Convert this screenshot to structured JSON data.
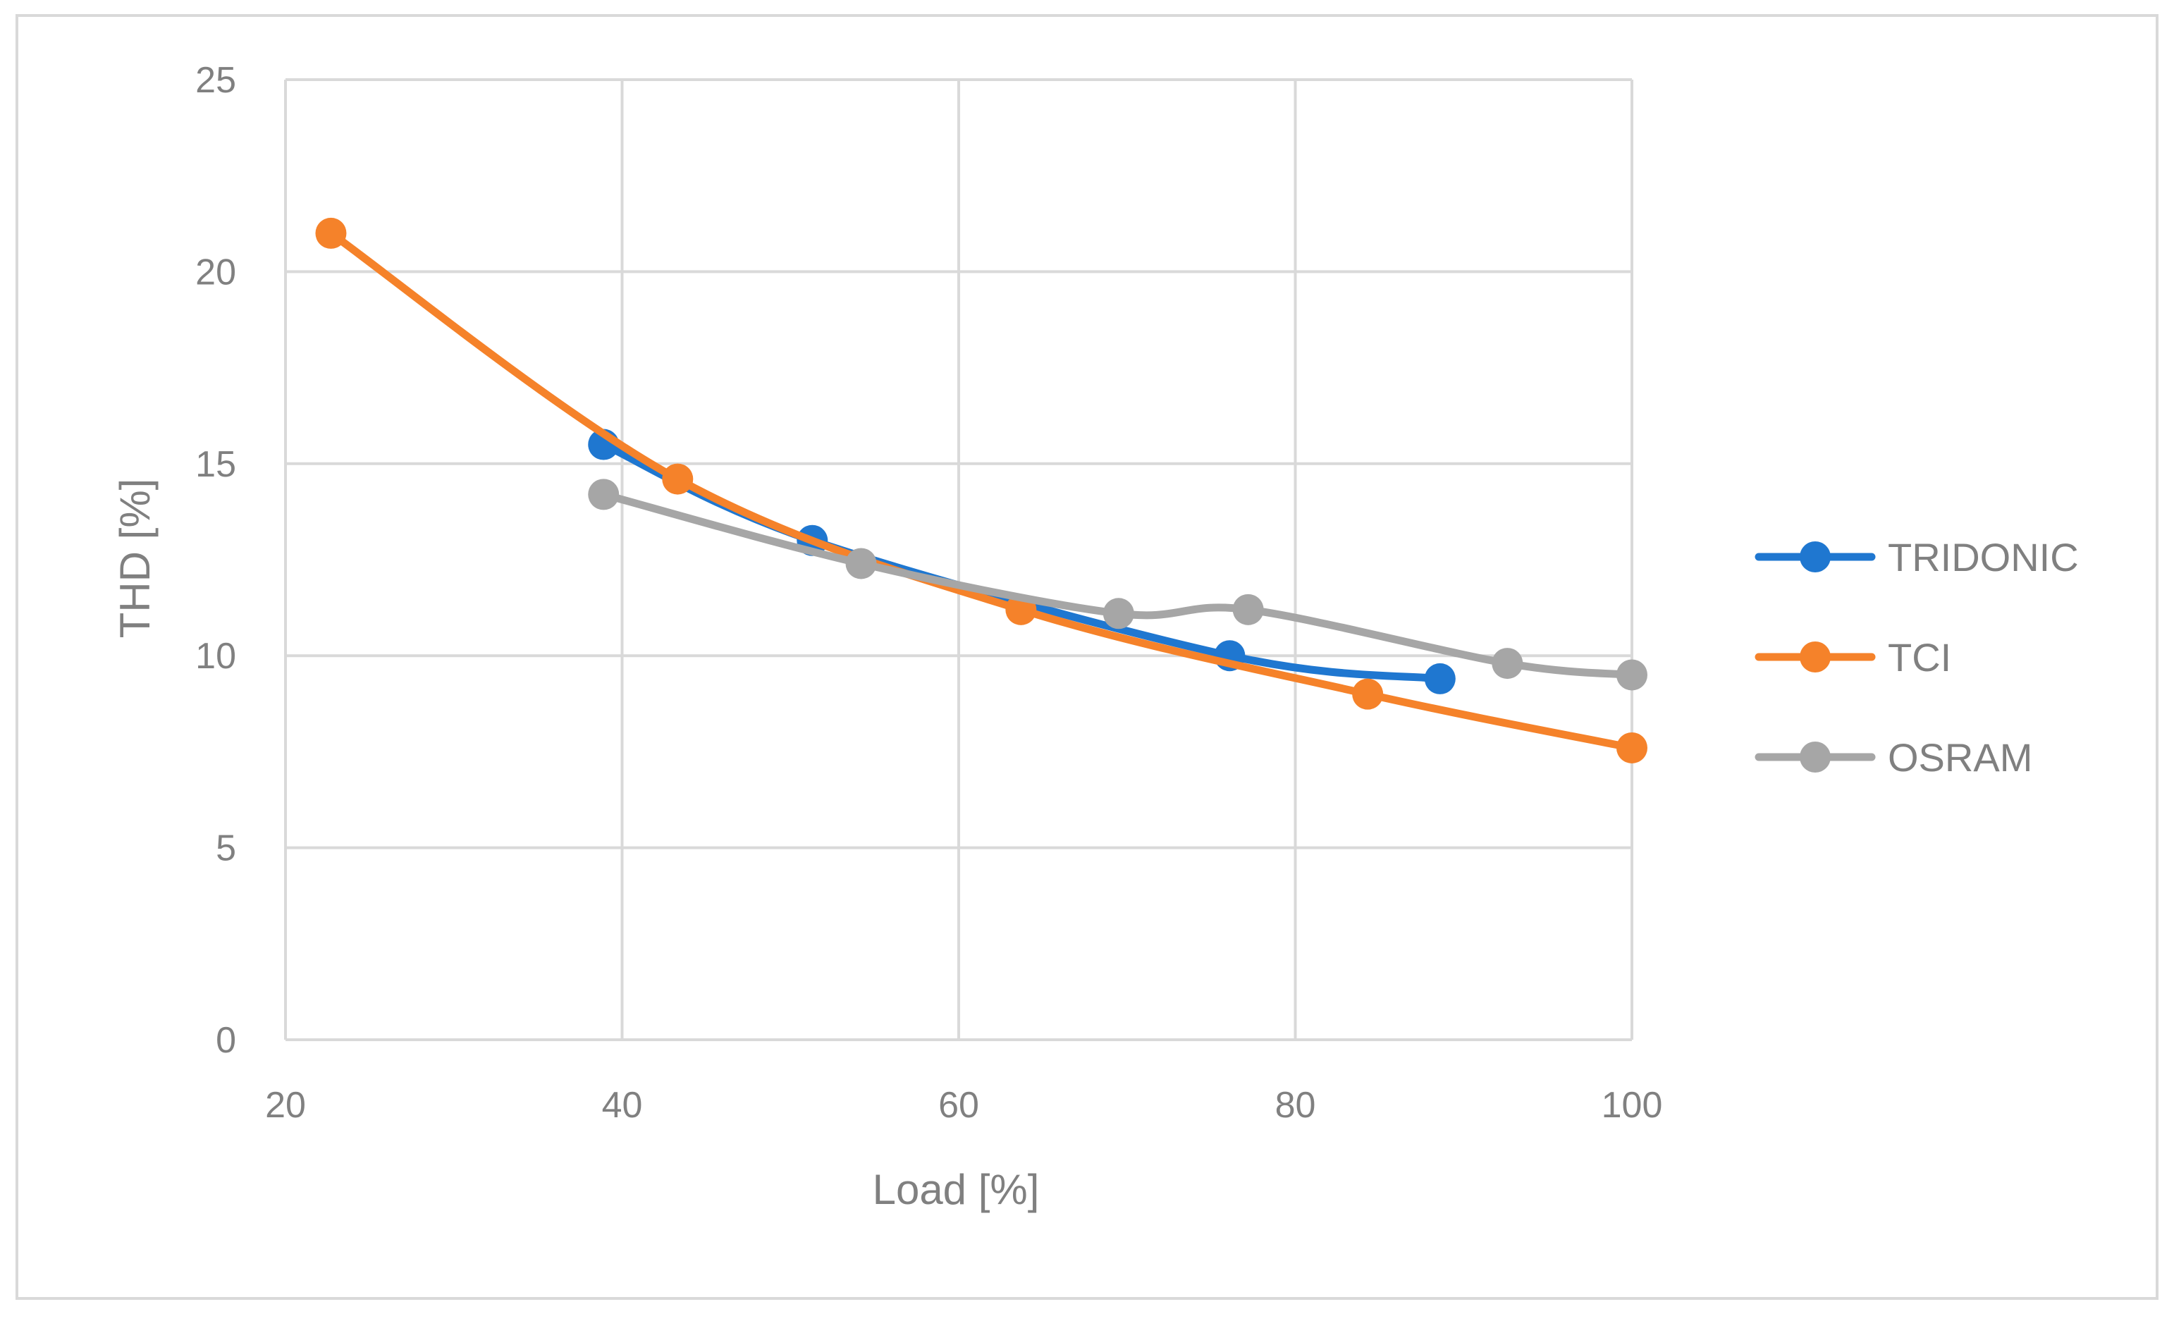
{
  "chart_data": {
    "type": "scatter",
    "title": "",
    "xlabel": "Load [%]",
    "ylabel": "THD [%]",
    "xlim": [
      20,
      100
    ],
    "ylim": [
      0,
      25
    ],
    "x_ticks": [
      20,
      40,
      60,
      80,
      100
    ],
    "y_ticks": [
      0,
      5,
      10,
      15,
      20,
      25
    ],
    "grid": true,
    "legend_position": "right",
    "line_style": "smooth lines with markers",
    "series": [
      {
        "name": "TRIDONIC",
        "color": "#1f77d0",
        "x": [
          38.9,
          51.3,
          76.1,
          88.6
        ],
        "y": [
          15.5,
          13.0,
          10.0,
          9.4
        ]
      },
      {
        "name": "TCI",
        "color": "#f5822a",
        "x": [
          22.7,
          43.3,
          63.7,
          84.3,
          100.0
        ],
        "y": [
          21.0,
          14.6,
          11.2,
          9.0,
          7.6
        ]
      },
      {
        "name": "OSRAM",
        "color": "#a6a6a6",
        "x": [
          38.9,
          54.2,
          69.5,
          77.2,
          92.6,
          100.0
        ],
        "y": [
          14.2,
          12.4,
          11.1,
          11.2,
          9.8,
          9.5
        ]
      }
    ]
  }
}
